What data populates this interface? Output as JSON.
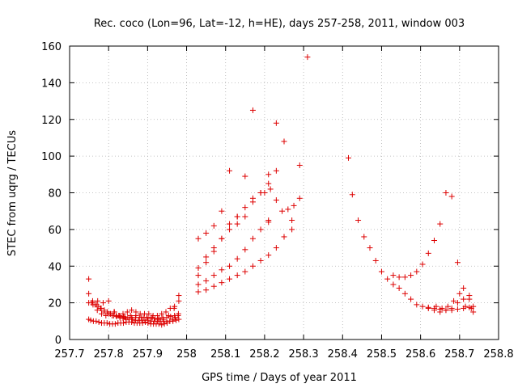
{
  "chart_data": {
    "type": "scatter",
    "title": "Rec. coco (Lon=96, Lat=-12, h=HE), days 257-258, 2011, window 003",
    "xlabel": "GPS time / Days of year 2011",
    "ylabel": "STEC from uqrg / TECUs",
    "xlim": [
      257.7,
      258.8
    ],
    "ylim": [
      0,
      160
    ],
    "xticks": [
      257.7,
      257.8,
      257.9,
      258.0,
      258.1,
      258.2,
      258.3,
      258.4,
      258.5,
      258.6,
      258.7,
      258.8
    ],
    "xtick_labels": [
      "257.7",
      "257.8",
      "257.9",
      "258",
      "258.1",
      "258.2",
      "258.3",
      "258.4",
      "258.5",
      "258.6",
      "258.7",
      "258.8"
    ],
    "yticks": [
      0,
      20,
      40,
      60,
      80,
      100,
      120,
      140,
      160
    ],
    "ytick_labels": [
      "0",
      "20",
      "40",
      "60",
      "80",
      "100",
      "120",
      "140",
      "160"
    ],
    "grid": true,
    "marker": "plus",
    "color": "#dd0000",
    "series": [
      {
        "x": [
          257.749,
          257.754,
          257.761,
          257.768,
          257.775,
          257.782,
          257.789,
          257.796,
          257.803,
          257.81,
          257.817,
          257.824,
          257.831,
          257.838,
          257.845,
          257.852,
          257.859,
          257.866,
          257.873,
          257.88,
          257.887,
          257.894,
          257.901,
          257.908,
          257.915,
          257.922,
          257.929,
          257.936,
          257.943,
          257.95,
          257.957,
          257.964,
          257.971,
          257.978
        ],
        "y": [
          11,
          10.5,
          10,
          10,
          9.5,
          9,
          9,
          9,
          8.5,
          8.5,
          8.5,
          9,
          9,
          9,
          9.5,
          9.5,
          9.5,
          9,
          9,
          9,
          9,
          9.5,
          9,
          8.5,
          8.5,
          8.5,
          8.5,
          8,
          8.5,
          9,
          10,
          11,
          12,
          13
        ]
      },
      {
        "x": [
          257.749,
          257.757,
          257.765,
          257.773,
          257.781,
          257.789,
          257.797,
          257.805,
          257.813,
          257.821,
          257.829,
          257.837,
          257.845,
          257.853,
          257.861,
          257.869,
          257.877,
          257.885,
          257.893,
          257.901,
          257.909,
          257.917,
          257.925,
          257.933,
          257.941,
          257.949,
          257.957,
          257.965,
          257.973,
          257.98
        ],
        "y": [
          20,
          20,
          19,
          18,
          17,
          16,
          15,
          14,
          13,
          12.5,
          12,
          11.5,
          11,
          11,
          11,
          10.5,
          10.5,
          10.5,
          10.5,
          10.5,
          10,
          10,
          10,
          10,
          10,
          10,
          10,
          10,
          10.5,
          11
        ]
      },
      {
        "x": [
          257.749,
          257.759,
          257.769,
          257.779,
          257.789,
          257.799,
          257.809,
          257.819,
          257.829,
          257.839,
          257.849,
          257.859,
          257.869,
          257.879,
          257.889,
          257.899,
          257.909,
          257.919,
          257.929,
          257.939,
          257.949,
          257.959,
          257.969,
          257.979
        ],
        "y": [
          25,
          21,
          19,
          17,
          15,
          14,
          13,
          13,
          12.5,
          12.5,
          12,
          12,
          12,
          12,
          12,
          12,
          11.5,
          11.5,
          11.5,
          12,
          12,
          12.5,
          13,
          14
        ]
      },
      {
        "x": [
          257.749,
          257.76,
          257.771,
          257.782,
          257.793,
          257.804,
          257.815,
          257.826,
          257.837,
          257.848,
          257.859,
          257.87,
          257.881,
          257.892,
          257.903,
          257.914,
          257.925,
          257.936,
          257.947,
          257.958,
          257.969,
          257.98
        ],
        "y": [
          33,
          19,
          16,
          14,
          13,
          14,
          15,
          13,
          14,
          15,
          16,
          15,
          14,
          14,
          14,
          13,
          13,
          14,
          15,
          17,
          18,
          21
        ]
      },
      {
        "x": [
          257.772,
          257.786,
          257.8,
          257.814,
          257.828,
          257.842,
          257.856,
          257.87,
          257.884,
          257.898,
          257.912,
          257.926,
          257.94,
          257.954,
          257.968,
          257.98
        ],
        "y": [
          21,
          20,
          21,
          15,
          13,
          12,
          13,
          13,
          12,
          12,
          12,
          11,
          11,
          13,
          17,
          24
        ]
      },
      {
        "x": [
          258.03,
          258.05,
          258.07,
          258.09,
          258.11,
          258.13,
          258.15,
          258.17,
          258.19,
          258.21,
          258.23,
          258.25,
          258.27,
          258.29
        ],
        "y": [
          26,
          27,
          29,
          31,
          33,
          35,
          37,
          40,
          43,
          46,
          50,
          56,
          65,
          77
        ]
      },
      {
        "x": [
          258.03,
          258.05,
          258.07,
          258.09,
          258.11,
          258.13,
          258.15,
          258.17,
          258.19,
          258.21
        ],
        "y": [
          30,
          32,
          35,
          38,
          40,
          44,
          49,
          55,
          60,
          65
        ]
      },
      {
        "x": [
          258.03,
          258.05,
          258.07,
          258.09,
          258.11,
          258.13,
          258.15,
          258.17,
          258.19,
          258.21
        ],
        "y": [
          35,
          42,
          48,
          55,
          63,
          67,
          72,
          77,
          80,
          90
        ]
      },
      {
        "x": [
          258.03,
          258.05,
          258.07,
          258.09,
          258.11,
          258.13,
          258.15,
          258.17,
          258.19,
          258.21,
          258.23
        ],
        "y": [
          39,
          45,
          50,
          55,
          60,
          63,
          67,
          75,
          80,
          85,
          92
        ]
      },
      {
        "x": [
          258.03,
          258.05,
          258.07,
          258.09,
          258.11,
          258.13,
          258.15,
          258.17,
          258.19,
          258.21,
          258.23,
          258.25,
          258.27,
          258.29,
          258.31
        ],
        "y": [
          55,
          58,
          62,
          70,
          92,
          67,
          89,
          125,
          80,
          64,
          76,
          108,
          60,
          95,
          154
        ]
      },
      {
        "x": [
          258.2,
          258.215,
          258.23,
          258.245,
          258.26,
          258.275
        ],
        "y": [
          80,
          82,
          118,
          70,
          71,
          73
        ]
      },
      {
        "x": [
          258.415,
          258.425,
          258.44,
          258.455,
          258.47,
          258.485,
          258.5,
          258.515,
          258.53,
          258.545,
          258.56,
          258.575,
          258.59,
          258.605,
          258.62,
          258.635,
          258.65,
          258.665,
          258.68,
          258.695,
          258.71,
          258.725
        ],
        "y": [
          99,
          79,
          65,
          56,
          50,
          43,
          37,
          33,
          30,
          28,
          25,
          22,
          19,
          18,
          17.5,
          17,
          16.5,
          16,
          16,
          16.5,
          17,
          17.5
        ]
      },
      {
        "x": [
          258.53,
          258.545,
          258.56,
          258.575,
          258.59,
          258.605,
          258.62,
          258.635,
          258.65,
          258.665,
          258.68,
          258.695,
          258.71,
          258.725,
          258.735
        ],
        "y": [
          35,
          34,
          34,
          35,
          37,
          41,
          47,
          54,
          63,
          80,
          78,
          42,
          28,
          22,
          18
        ]
      },
      {
        "x": [
          258.62,
          258.635,
          258.65,
          258.665,
          258.68,
          258.695,
          258.71,
          258.725,
          258.735
        ],
        "y": [
          17,
          16,
          15,
          16,
          17,
          20,
          22,
          24,
          15
        ]
      },
      {
        "x": [
          258.64,
          258.655,
          258.67,
          258.685,
          258.7,
          258.715,
          258.73
        ],
        "y": [
          18,
          17,
          18,
          21,
          25,
          18,
          17
        ]
      }
    ]
  }
}
